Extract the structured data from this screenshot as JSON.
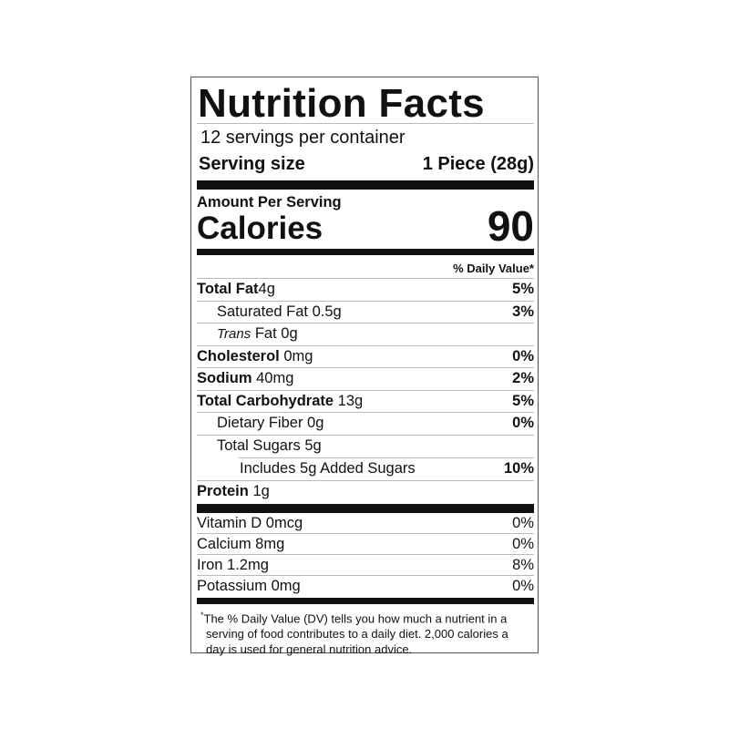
{
  "title": "Nutrition Facts",
  "servings_per_container": "12 servings per container",
  "serving_size": {
    "label": "Serving size",
    "value": "1 Piece (28g)"
  },
  "amount_per_serving": "Amount Per Serving",
  "calories": {
    "label": "Calories",
    "value": "90"
  },
  "daily_value_header": "% Daily Value*",
  "nutrients": [
    {
      "name": "Total Fat",
      "amount": "4g",
      "dv": "5%"
    },
    {
      "name": "Saturated Fat",
      "amount": "0.5g",
      "dv": "3%"
    },
    {
      "name_italic": "Trans",
      "name": "Fat",
      "amount": "0g",
      "dv": ""
    },
    {
      "name": "Cholesterol",
      "amount": "0mg",
      "dv": "0%"
    },
    {
      "name": "Sodium",
      "amount": "40mg",
      "dv": "2%"
    },
    {
      "name": "Total Carbohydrate",
      "amount": "13g",
      "dv": "5%"
    },
    {
      "name": "Dietary Fiber",
      "amount": "0g",
      "dv": "0%"
    },
    {
      "name": "Total Sugars",
      "amount": "5g",
      "dv": ""
    },
    {
      "name": "Includes 5g Added Sugars",
      "dv": "10%"
    },
    {
      "name": "Protein",
      "amount": "1g",
      "dv": ""
    }
  ],
  "vitamins": [
    {
      "name": "Vitamin D 0mcg",
      "dv": "0%"
    },
    {
      "name": "Calcium 8mg",
      "dv": "0%"
    },
    {
      "name": "Iron 1.2mg",
      "dv": "8%"
    },
    {
      "name": "Potassium 0mg",
      "dv": "0%"
    }
  ],
  "footnote": {
    "marker": "*",
    "text": "The % Daily Value (DV) tells you how much a nutrient in a serving of food contributes to a daily diet. 2,000 calories a day is used for general nutrition advice."
  }
}
